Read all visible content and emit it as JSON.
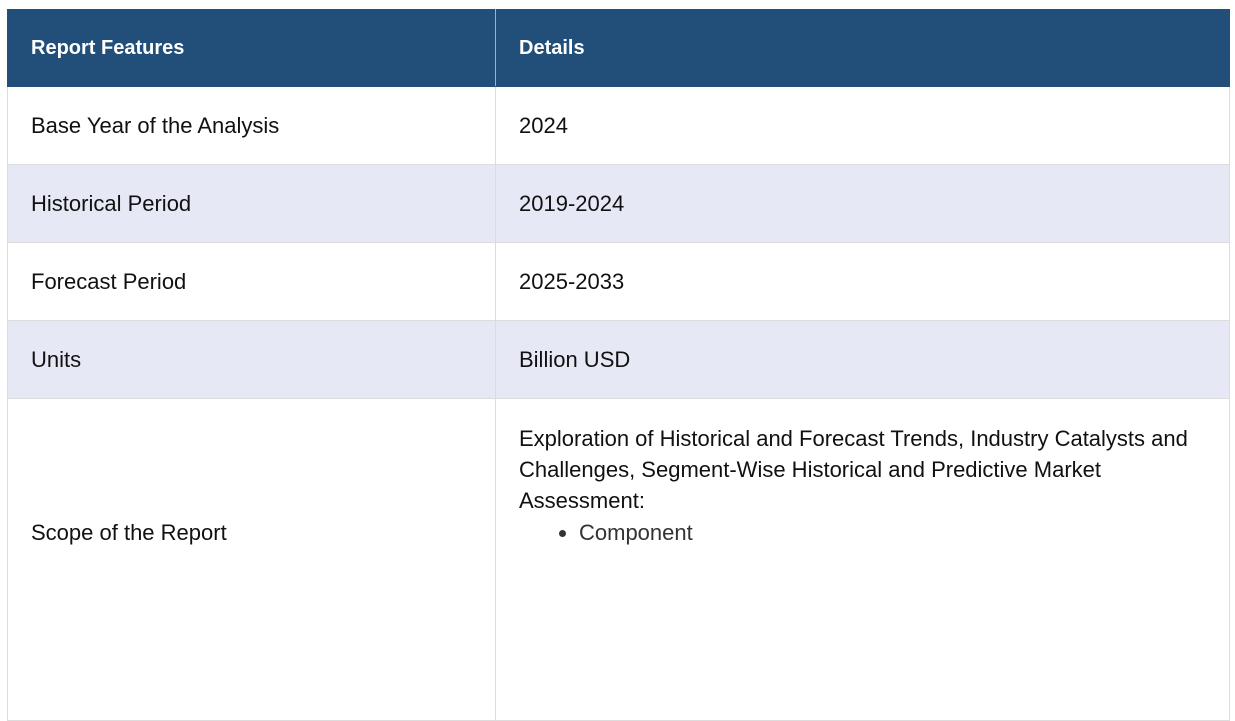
{
  "table": {
    "headers": [
      "Report Features",
      "Details"
    ],
    "rows": [
      {
        "feature": "Base Year of the Analysis",
        "detail": "2024"
      },
      {
        "feature": "Historical Period",
        "detail": "2019-2024"
      },
      {
        "feature": "Forecast Period",
        "detail": "2025-2033"
      },
      {
        "feature": "Units",
        "detail": "Billion USD"
      }
    ],
    "scope": {
      "feature": "Scope of the Report",
      "detail": "Exploration of Historical and Forecast Trends, Industry Catalysts and Challenges, Segment-Wise Historical and Predictive Market Assessment:",
      "bullets": [
        "Component"
      ]
    }
  },
  "colors": {
    "header_bg": "#214f7a",
    "header_text": "#ffffff",
    "alt_row_bg": "#e6e9f5",
    "row_bg": "#ffffff"
  }
}
